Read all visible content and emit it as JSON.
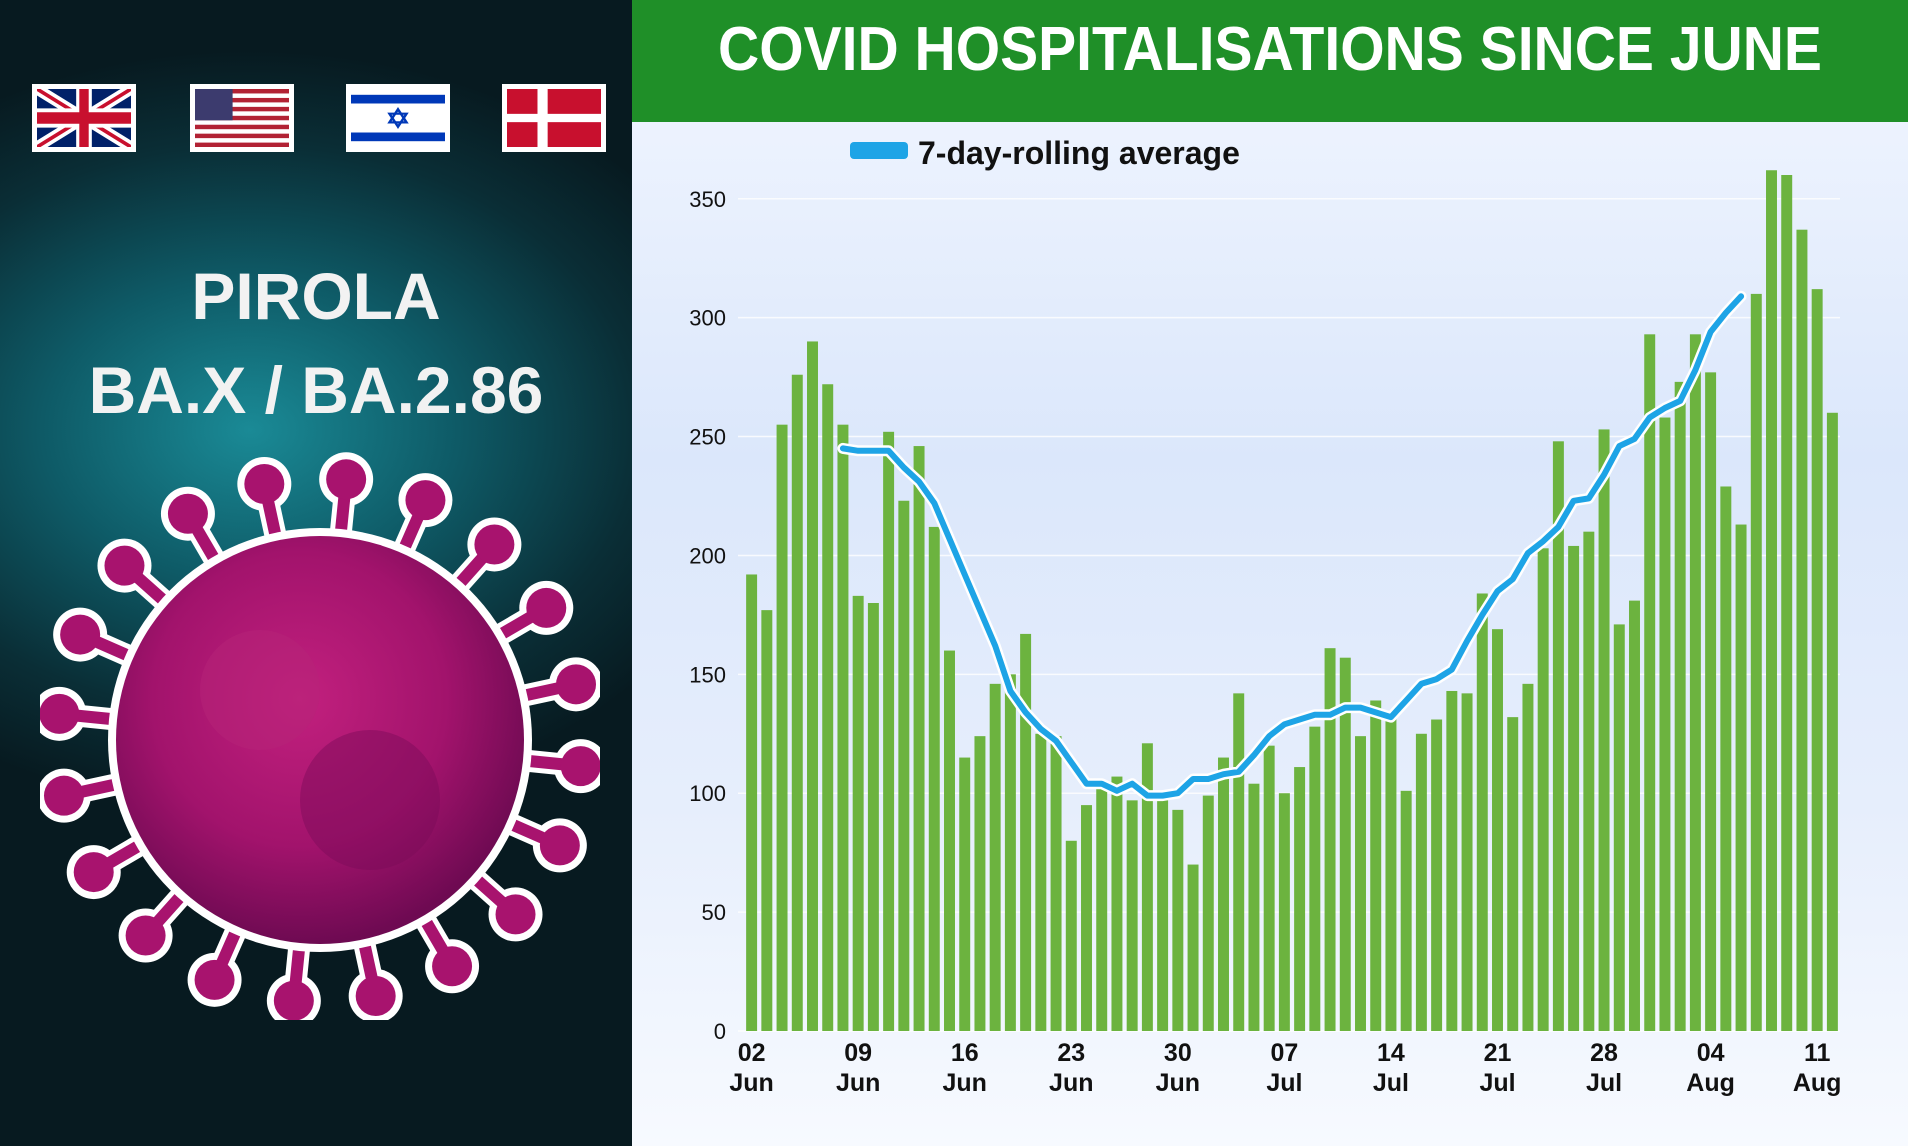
{
  "left_panel": {
    "flags": [
      "uk-flag",
      "us-flag",
      "israel-flag",
      "denmark-flag"
    ],
    "strain_name": "PIROLA",
    "strain_codes": "BA.X / BA.2.86",
    "virus_icon": "virus-icon",
    "virus_color": "#a8136e"
  },
  "chart_data": {
    "type": "bar",
    "title": "COVID HOSPITALISATIONS SINCE JUNE",
    "xlabel": "",
    "ylabel": "",
    "ylim": [
      0,
      360
    ],
    "yticks": [
      0,
      50,
      100,
      150,
      200,
      250,
      300,
      350
    ],
    "bar_color": "#6cb33f",
    "line_color": "#1ea4e6",
    "x_tick_labels": [
      {
        "day": "02",
        "month": "Jun",
        "index": 0
      },
      {
        "day": "09",
        "month": "Jun",
        "index": 7
      },
      {
        "day": "16",
        "month": "Jun",
        "index": 14
      },
      {
        "day": "23",
        "month": "Jun",
        "index": 21
      },
      {
        "day": "30",
        "month": "Jun",
        "index": 28
      },
      {
        "day": "07",
        "month": "Jul",
        "index": 35
      },
      {
        "day": "14",
        "month": "Jul",
        "index": 42
      },
      {
        "day": "21",
        "month": "Jul",
        "index": 49
      },
      {
        "day": "28",
        "month": "Jul",
        "index": 56
      },
      {
        "day": "04",
        "month": "Aug",
        "index": 63
      },
      {
        "day": "11",
        "month": "Aug",
        "index": 70
      }
    ],
    "series": [
      {
        "type": "bar",
        "values": [
          192,
          177,
          255,
          276,
          290,
          272,
          255,
          183,
          180,
          252,
          223,
          246,
          212,
          160,
          115,
          124,
          146,
          150,
          167,
          125,
          124,
          80,
          95,
          102,
          107,
          97,
          121,
          98,
          93,
          70,
          99,
          115,
          142,
          104,
          120,
          100,
          111,
          128,
          161,
          157,
          124,
          139,
          134,
          101,
          125,
          131,
          143,
          142,
          184,
          169,
          132,
          146,
          203,
          248,
          204,
          210,
          253,
          171,
          181,
          293,
          258,
          273,
          293,
          277,
          229,
          213,
          310,
          362,
          360,
          337,
          312,
          260
        ]
      },
      {
        "type": "line",
        "name": "7-day-rolling average",
        "start_index": 6,
        "values": [
          245,
          244,
          244,
          244,
          237,
          231,
          222,
          207,
          192,
          177,
          162,
          143,
          134,
          127,
          122,
          113,
          104,
          104,
          101,
          104,
          99,
          99,
          100,
          106,
          106,
          108,
          109,
          116,
          124,
          129,
          131,
          133,
          133,
          136,
          136,
          134,
          132,
          139,
          146,
          148,
          152,
          164,
          175,
          185,
          190,
          201,
          206,
          212,
          223,
          224,
          234,
          246,
          249,
          258,
          262,
          265,
          278,
          294,
          302,
          309
        ]
      }
    ]
  }
}
